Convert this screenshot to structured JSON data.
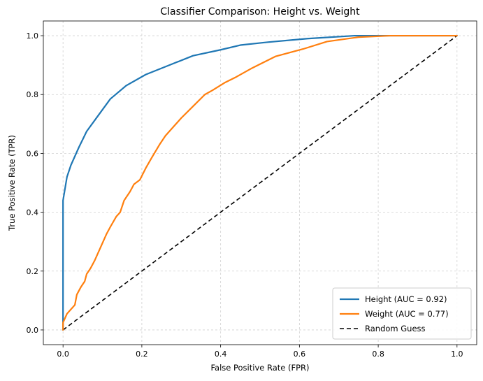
{
  "chart_data": {
    "type": "line",
    "title": "Classifier Comparison: Height vs. Weight",
    "xlabel": "False Positive Rate (FPR)",
    "ylabel": "True Positive Rate (TPR)",
    "xlim": [
      -0.05,
      1.05
    ],
    "ylim": [
      -0.05,
      1.05
    ],
    "xticks": [
      0.0,
      0.2,
      0.4,
      0.6,
      0.8,
      1.0
    ],
    "yticks": [
      0.0,
      0.2,
      0.4,
      0.6,
      0.8,
      1.0
    ],
    "xtick_labels": [
      "0.0",
      "0.2",
      "0.4",
      "0.6",
      "0.8",
      "1.0"
    ],
    "ytick_labels": [
      "0.0",
      "0.2",
      "0.4",
      "0.6",
      "0.8",
      "1.0"
    ],
    "grid": true,
    "legend_position": "bottom-right",
    "series": [
      {
        "name": "Height (AUC = 0.92)",
        "color": "#1f77b4",
        "style": "solid",
        "x": [
          0.0,
          0.0,
          0.0,
          0.01,
          0.02,
          0.04,
          0.06,
          0.09,
          0.12,
          0.16,
          0.21,
          0.27,
          0.33,
          0.4,
          0.45,
          0.52,
          0.62,
          0.74,
          0.85,
          1.0
        ],
        "y": [
          0.0,
          0.1,
          0.44,
          0.52,
          0.56,
          0.62,
          0.675,
          0.73,
          0.785,
          0.83,
          0.868,
          0.9,
          0.932,
          0.952,
          0.968,
          0.978,
          0.99,
          1.0,
          1.0,
          1.0
        ]
      },
      {
        "name": "Weight (AUC = 0.77)",
        "color": "#ff7f0e",
        "style": "solid",
        "x": [
          0.0,
          0.0,
          0.005,
          0.01,
          0.02,
          0.03,
          0.035,
          0.045,
          0.055,
          0.06,
          0.07,
          0.08,
          0.09,
          0.1,
          0.11,
          0.12,
          0.135,
          0.145,
          0.155,
          0.17,
          0.18,
          0.195,
          0.21,
          0.225,
          0.245,
          0.26,
          0.28,
          0.3,
          0.33,
          0.36,
          0.38,
          0.41,
          0.44,
          0.48,
          0.54,
          0.61,
          0.67,
          0.75,
          0.83,
          1.0
        ],
        "y": [
          0.0,
          0.025,
          0.04,
          0.055,
          0.07,
          0.085,
          0.12,
          0.145,
          0.165,
          0.19,
          0.21,
          0.235,
          0.265,
          0.295,
          0.325,
          0.35,
          0.385,
          0.4,
          0.44,
          0.47,
          0.495,
          0.51,
          0.55,
          0.585,
          0.63,
          0.66,
          0.69,
          0.72,
          0.76,
          0.8,
          0.815,
          0.84,
          0.86,
          0.89,
          0.93,
          0.955,
          0.98,
          0.995,
          1.0,
          1.0
        ]
      },
      {
        "name": "Random Guess",
        "color": "#000000",
        "style": "dashed",
        "x": [
          0.0,
          1.0
        ],
        "y": [
          0.0,
          1.0
        ]
      }
    ]
  }
}
